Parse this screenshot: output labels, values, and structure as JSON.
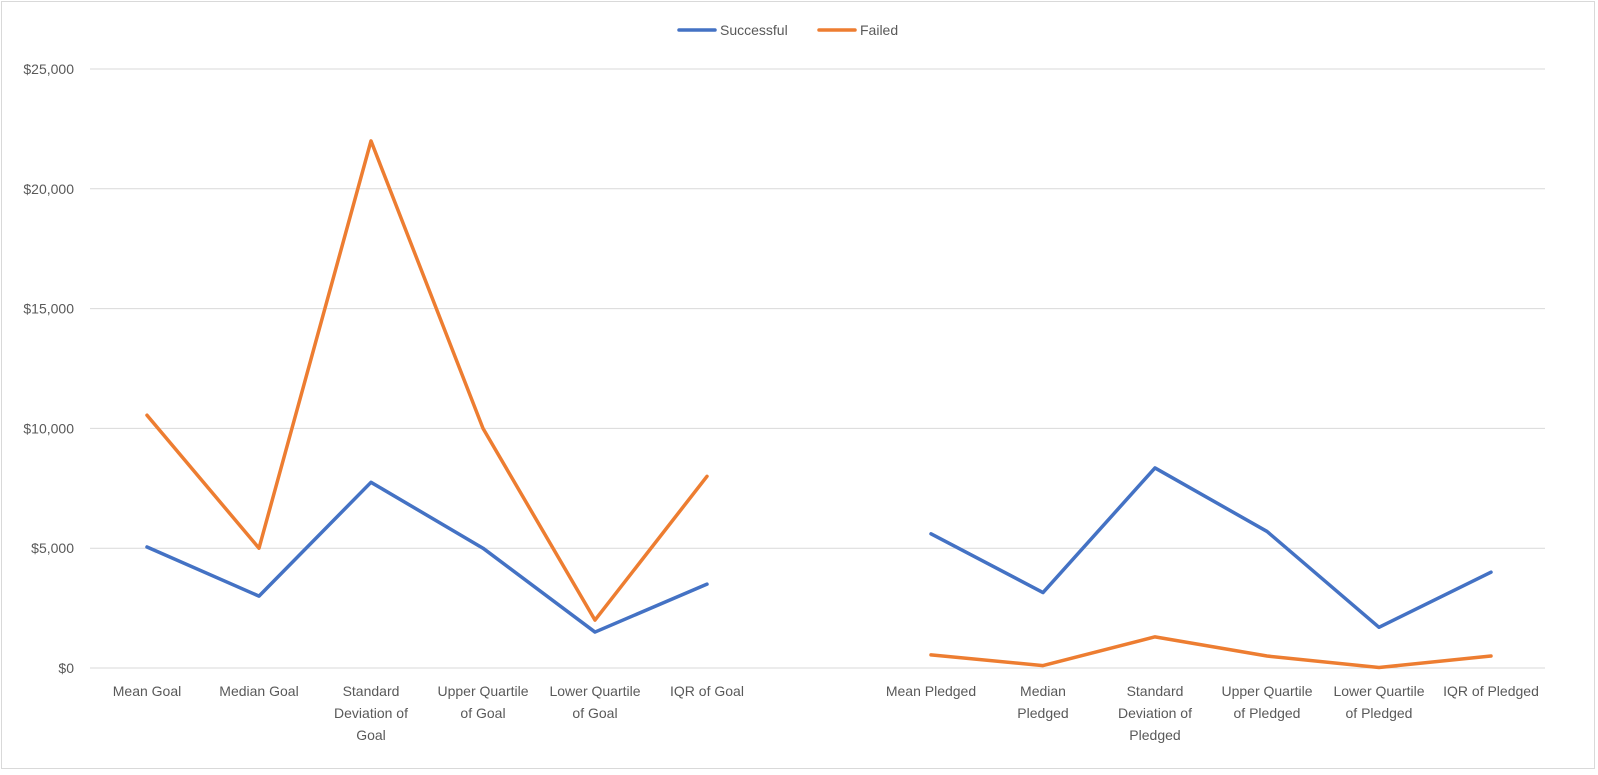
{
  "chart_data": {
    "type": "line",
    "categories": [
      [
        "Mean Goal"
      ],
      [
        "Median Goal"
      ],
      [
        "Standard",
        "Deviation of",
        "Goal"
      ],
      [
        "Upper Quartile",
        "of Goal"
      ],
      [
        "Lower Quartile",
        "of Goal"
      ],
      [
        "IQR of Goal"
      ],
      [],
      [
        "Mean Pledged"
      ],
      [
        "Median",
        "Pledged"
      ],
      [
        "Standard",
        "Deviation of",
        "Pledged"
      ],
      [
        "Upper Quartile",
        "of Pledged"
      ],
      [
        "Lower Quartile",
        "of Pledged"
      ],
      [
        "IQR of Pledged"
      ]
    ],
    "series": [
      {
        "name": "Successful",
        "color": "#4472c4",
        "values": [
          5050,
          3000,
          7750,
          5000,
          1500,
          3500,
          null,
          5600,
          3150,
          8350,
          5700,
          1700,
          4000
        ]
      },
      {
        "name": "Failed",
        "color": "#ed7d31",
        "values": [
          10550,
          5000,
          22000,
          10000,
          2000,
          8000,
          null,
          550,
          100,
          1300,
          500,
          20,
          500
        ]
      }
    ],
    "ylim": [
      0,
      25000
    ],
    "y_ticks": [
      "$0",
      "$5,000",
      "$10,000",
      "$15,000",
      "$20,000",
      "$25,000"
    ],
    "y_tick_values": [
      0,
      5000,
      10000,
      15000,
      20000,
      25000
    ],
    "grid": true,
    "legend_position": "top-center"
  }
}
